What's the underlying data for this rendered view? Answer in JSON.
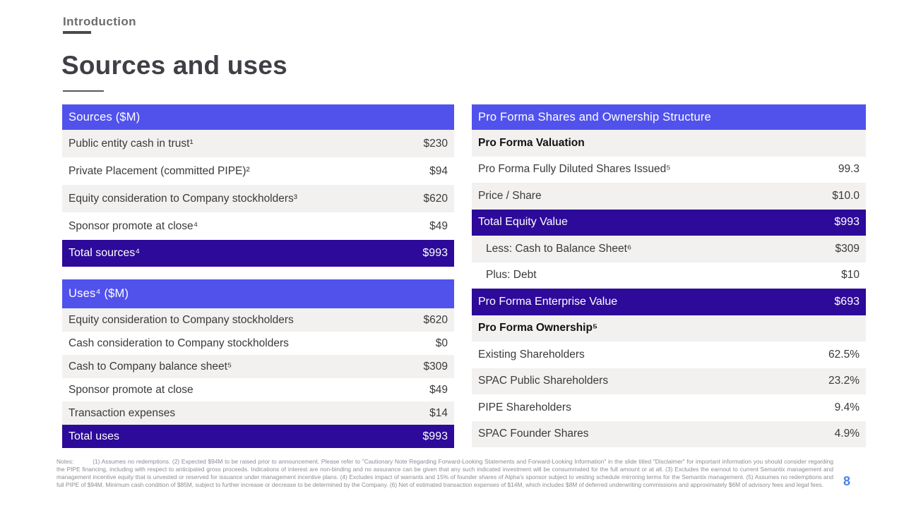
{
  "header": {
    "eyebrow": "Introduction",
    "title": "Sources and uses"
  },
  "sources_table": {
    "header": "Sources ($M)",
    "rows": [
      {
        "label": "Public entity cash in trust¹",
        "value": "$230"
      },
      {
        "label": "Private Placement (committed PIPE)²",
        "value": "$94"
      },
      {
        "label": "Equity consideration to Company stockholders³",
        "value": "$620"
      },
      {
        "label": "Sponsor promote at close⁴",
        "value": "$49"
      }
    ],
    "total": {
      "label": "Total sources⁴",
      "value": "$993"
    }
  },
  "uses_table": {
    "header": "Uses⁴ ($M)",
    "rows": [
      {
        "label": "Equity consideration to Company stockholders",
        "value": "$620"
      },
      {
        "label": "Cash consideration to Company stockholders",
        "value": "$0"
      },
      {
        "label": "Cash to Company balance sheet⁵",
        "value": "$309"
      },
      {
        "label": "Sponsor promote at close",
        "value": "$49"
      },
      {
        "label": "Transaction expenses",
        "value": "$14"
      }
    ],
    "total": {
      "label": "Total uses",
      "value": "$993"
    }
  },
  "proforma_table": {
    "header": "Pro Forma Shares and Ownership Structure",
    "rows": [
      {
        "label": "Pro Forma Valuation",
        "value": ""
      },
      {
        "label": "Pro Forma Fully Diluted Shares Issued⁵",
        "value": "99.3"
      },
      {
        "label": "Price / Share",
        "value": "$10.0"
      },
      {
        "label": "Total Equity Value",
        "value": "$993"
      },
      {
        "label": "Less: Cash to Balance Sheet⁶",
        "value": "$309"
      },
      {
        "label": "Plus: Debt",
        "value": "$10"
      },
      {
        "label": "Pro Forma Enterprise Value",
        "value": "$693"
      },
      {
        "label": "Pro Forma Ownership⁵",
        "value": ""
      },
      {
        "label": "Existing Shareholders",
        "value": "62.5%"
      },
      {
        "label": "SPAC Public Shareholders",
        "value": "23.2%"
      },
      {
        "label": "PIPE Shareholders",
        "value": "9.4%"
      },
      {
        "label": "SPAC Founder Shares",
        "value": "4.9%"
      }
    ]
  },
  "footnotes": {
    "label": "Notes:",
    "text": "(1) Assumes no redemptions. (2) Expected $94M to be raised prior to announcement. Please refer to \"Cautionary Note Regarding Forward-Looking Statements and Forward-Looking Information\" in the slide titled \"Disclaimer\" for important information you should consider regarding the PIPE financing, including with respect to anticipated gross proceeds. Indications of interest are non-binding and no assurance can be given that any such indicated investment will be consummated for the full amount or at all. (3) Excludes the earnout to current Semantix management and management incentive equity that is unvested or reserved for issuance under management incentive plans. (4) Excludes impact of warrants and 15% of founder shares of Alpha's sponsor subject to vesting schedule mirroring terms for the Semantix management. (5) Assumes no redemptions and full PIPE of $94M. Minimum cash condition of $85M, subject to further increase or decrease to be determined by the Company. (6) Net of estimated transaction expenses of $14M, which includes $8M of deferred underwriting commissions and approximately $6M of advisory fees and legal fees."
  },
  "page_number": "8",
  "colors": {
    "header_bar": "#5152ec",
    "total_bar": "#2d0a99",
    "row_gray": "#f2f1f0",
    "accent_blue": "#4a82ee"
  }
}
